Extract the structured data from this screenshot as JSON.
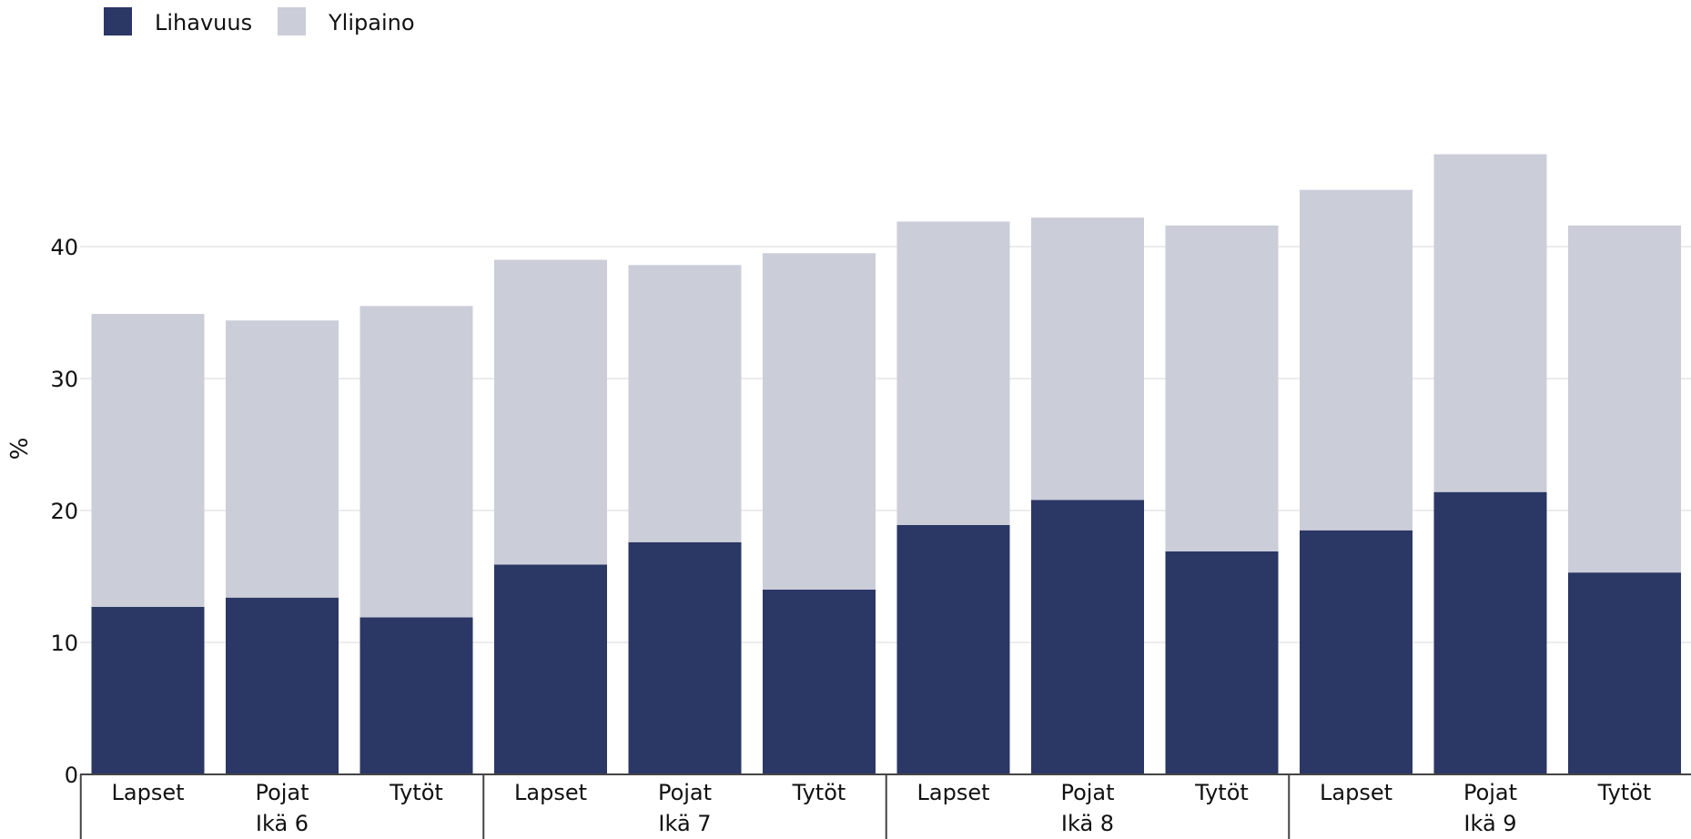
{
  "colors": {
    "lihavuus": "#2b3764",
    "ylipaino": "#cbcdd9",
    "grid": "#e6e6e6",
    "axis": "#444444"
  },
  "chart_data": {
    "type": "bar",
    "stacked": true,
    "ylabel": "%",
    "ylim": [
      0,
      50
    ],
    "yticks": [
      0,
      10,
      20,
      30,
      40
    ],
    "grid": true,
    "legend_position": "top-left",
    "categories": [
      {
        "sub": "Lapset",
        "group": "Ikä 6"
      },
      {
        "sub": "Pojat",
        "group": "Ikä 6"
      },
      {
        "sub": "Tytöt",
        "group": "Ikä 6"
      },
      {
        "sub": "Lapset",
        "group": "Ikä 7"
      },
      {
        "sub": "Pojat",
        "group": "Ikä 7"
      },
      {
        "sub": "Tytöt",
        "group": "Ikä 7"
      },
      {
        "sub": "Lapset",
        "group": "Ikä 8"
      },
      {
        "sub": "Pojat",
        "group": "Ikä 8"
      },
      {
        "sub": "Tytöt",
        "group": "Ikä 8"
      },
      {
        "sub": "Lapset",
        "group": "Ikä 9"
      },
      {
        "sub": "Pojat",
        "group": "Ikä 9"
      },
      {
        "sub": "Tytöt",
        "group": "Ikä 9"
      }
    ],
    "groups": [
      "Ikä 6",
      "Ikä 7",
      "Ikä 8",
      "Ikä 9"
    ],
    "series": [
      {
        "name": "Lihavuus",
        "values": [
          12.7,
          13.4,
          11.9,
          15.9,
          17.6,
          14.0,
          18.9,
          20.8,
          16.9,
          18.5,
          21.4,
          15.3
        ]
      },
      {
        "name": "Ylipaino",
        "values": [
          22.2,
          21.0,
          23.6,
          23.1,
          21.0,
          25.5,
          23.0,
          21.4,
          24.7,
          25.8,
          25.6,
          26.3
        ]
      }
    ]
  }
}
